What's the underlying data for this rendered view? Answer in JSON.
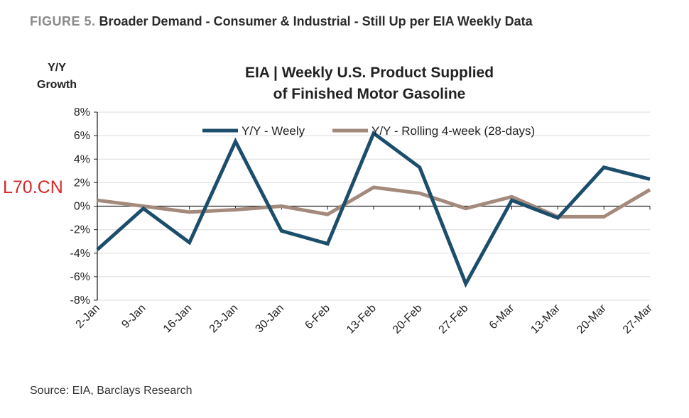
{
  "figure": {
    "number": "FIGURE 5.",
    "title": "Broader Demand - Consumer & Industrial - Still Up per EIA Weekly Data"
  },
  "source": "Source: EIA, Barclays Research",
  "watermark": "L70.CN",
  "colors": {
    "weekly": "#1c4e6b",
    "rolling": "#a48a7d",
    "grid": "#dcdcdc",
    "axis": "#222222"
  },
  "chart_data": {
    "type": "line",
    "title": [
      "EIA | Weekly U.S. Product Supplied",
      "of Finished Motor Gasoline"
    ],
    "ylabel": [
      "Y/Y",
      "Growth"
    ],
    "xlabel": "",
    "ylim": [
      -8,
      8
    ],
    "yticks": [
      8,
      6,
      4,
      2,
      0,
      -2,
      -4,
      -6,
      -8
    ],
    "ytick_labels": [
      "8%",
      "6%",
      "4%",
      "2%",
      "0%",
      "-2%",
      "-4%",
      "-6%",
      "-8%"
    ],
    "grid": "horizontal",
    "legend": "top",
    "categories": [
      "2-Jan",
      "9-Jan",
      "16-Jan",
      "23-Jan",
      "30-Jan",
      "6-Feb",
      "13-Feb",
      "20-Feb",
      "27-Feb",
      "6-Mar",
      "13-Mar",
      "20-Mar",
      "27-Mar"
    ],
    "series": [
      {
        "name": "Y/Y - Weely",
        "values": [
          -3.7,
          -0.2,
          -3.1,
          5.5,
          -2.1,
          -3.2,
          6.2,
          3.3,
          -6.6,
          0.5,
          -1.0,
          3.3,
          2.3
        ]
      },
      {
        "name": "Y/Y - Rolling 4-week (28-days)",
        "values": [
          0.5,
          0.0,
          -0.5,
          -0.3,
          0.0,
          -0.7,
          1.6,
          1.1,
          -0.2,
          0.8,
          -0.9,
          -0.9,
          1.4
        ]
      }
    ]
  }
}
